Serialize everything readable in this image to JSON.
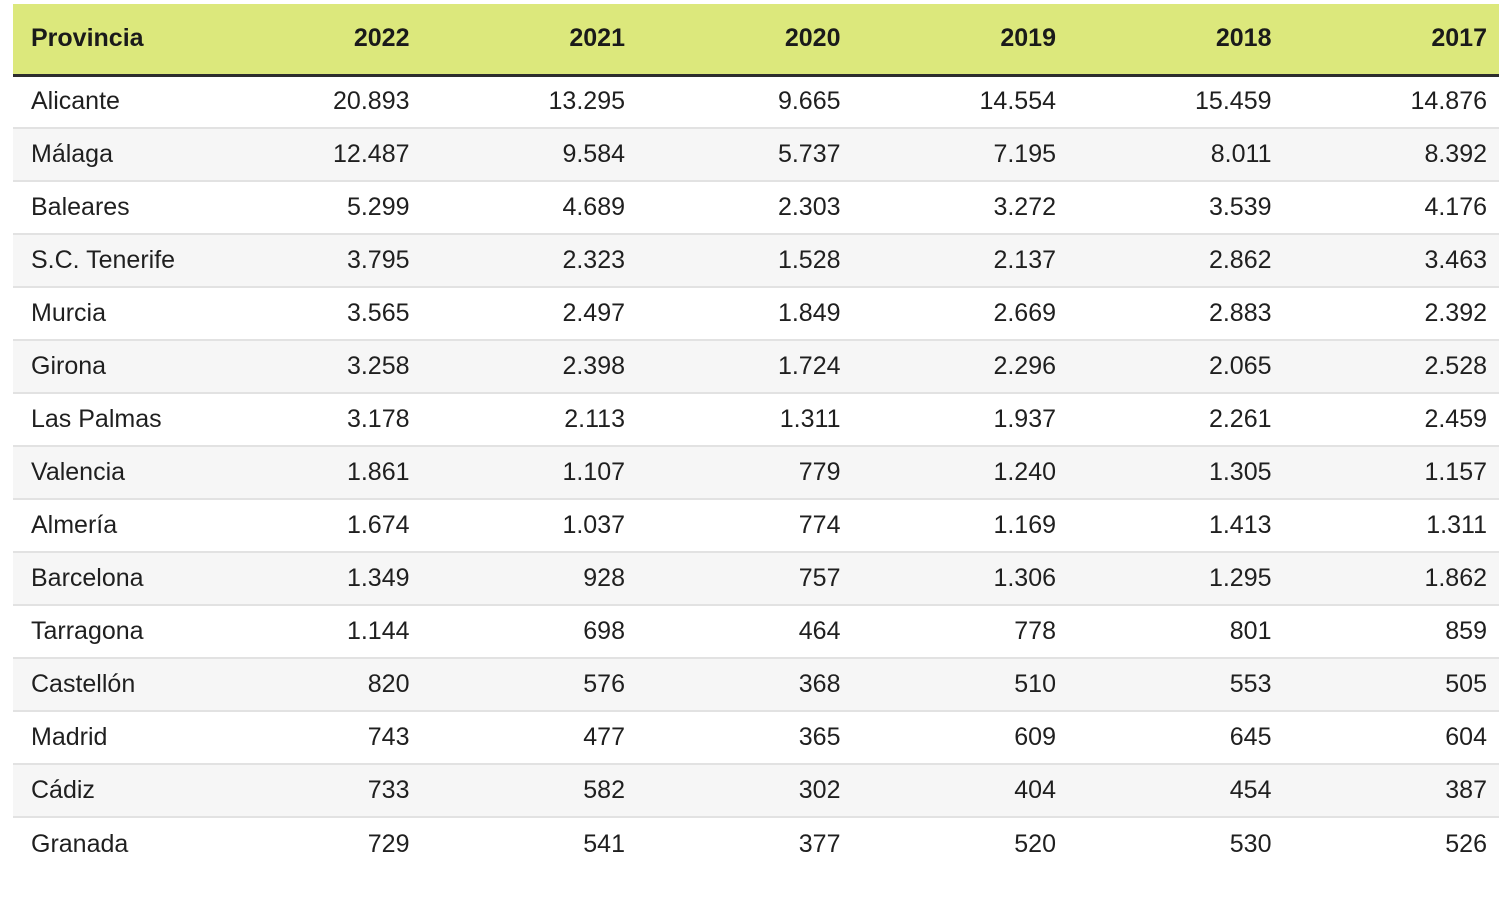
{
  "chart_data": {
    "type": "table",
    "columns": [
      "Provincia",
      "2022",
      "2021",
      "2020",
      "2019",
      "2018",
      "2017"
    ],
    "rows": [
      [
        "Alicante",
        "20.893",
        "13.295",
        "9.665",
        "14.554",
        "15.459",
        "14.876"
      ],
      [
        "Málaga",
        "12.487",
        "9.584",
        "5.737",
        "7.195",
        "8.011",
        "8.392"
      ],
      [
        "Baleares",
        "5.299",
        "4.689",
        "2.303",
        "3.272",
        "3.539",
        "4.176"
      ],
      [
        "S.C. Tenerife",
        "3.795",
        "2.323",
        "1.528",
        "2.137",
        "2.862",
        "3.463"
      ],
      [
        "Murcia",
        "3.565",
        "2.497",
        "1.849",
        "2.669",
        "2.883",
        "2.392"
      ],
      [
        "Girona",
        "3.258",
        "2.398",
        "1.724",
        "2.296",
        "2.065",
        "2.528"
      ],
      [
        "Las Palmas",
        "3.178",
        "2.113",
        "1.311",
        "1.937",
        "2.261",
        "2.459"
      ],
      [
        "Valencia",
        "1.861",
        "1.107",
        "779",
        "1.240",
        "1.305",
        "1.157"
      ],
      [
        "Almería",
        "1.674",
        "1.037",
        "774",
        "1.169",
        "1.413",
        "1.311"
      ],
      [
        "Barcelona",
        "1.349",
        "928",
        "757",
        "1.306",
        "1.295",
        "1.862"
      ],
      [
        "Tarragona",
        "1.144",
        "698",
        "464",
        "778",
        "801",
        "859"
      ],
      [
        "Castellón",
        "820",
        "576",
        "368",
        "510",
        "553",
        "505"
      ],
      [
        "Madrid",
        "743",
        "477",
        "365",
        "609",
        "645",
        "604"
      ],
      [
        "Cádiz",
        "733",
        "582",
        "302",
        "404",
        "454",
        "387"
      ],
      [
        "Granada",
        "729",
        "541",
        "377",
        "520",
        "530",
        "526"
      ]
    ]
  },
  "colors": {
    "page_background": "#ffffff",
    "header_background": "#dce87c",
    "header_text": "#1a1a1a",
    "header_border": "#2d2d2d",
    "body_text": "#1f1f1f",
    "row_stripe": "#f6f6f6",
    "row_separator": "#e2e2e2"
  }
}
